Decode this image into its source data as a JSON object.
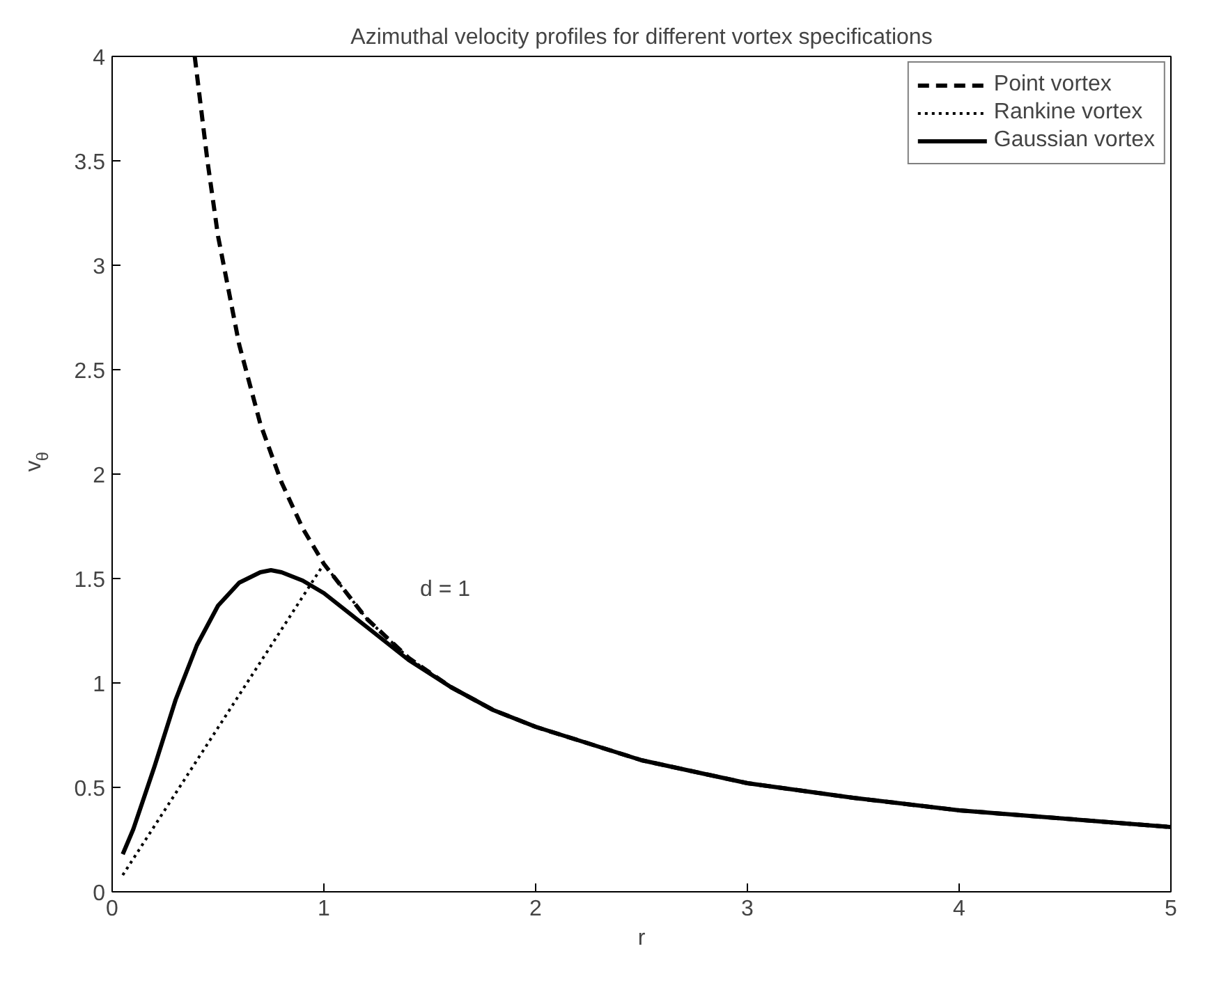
{
  "chart_data": {
    "type": "line",
    "title": "Azimuthal velocity profiles for different vortex specifications",
    "xlabel": "r",
    "ylabel": "v$_{θ}$",
    "xlim": [
      0,
      5
    ],
    "ylim": [
      0,
      4
    ],
    "xticks": [
      0,
      1,
      2,
      3,
      4,
      5
    ],
    "yticks": [
      0,
      0.5,
      1,
      1.5,
      2,
      2.5,
      3,
      3.5,
      4
    ],
    "grid": false,
    "legend": "top right",
    "annotations": [
      "d = 1"
    ],
    "series": [
      {
        "name": "Point vortex",
        "color": "#000000",
        "line_style": "dashed",
        "x": [
          0.39,
          0.45,
          0.5,
          0.6,
          0.7,
          0.8,
          0.9,
          1.0,
          1.2,
          1.4,
          1.6,
          1.8,
          2,
          2.5,
          3,
          3.5,
          4,
          4.5,
          5
        ],
        "values": [
          4.0,
          3.5,
          3.14,
          2.62,
          2.24,
          1.96,
          1.74,
          1.57,
          1.31,
          1.12,
          0.98,
          0.87,
          0.79,
          0.63,
          0.52,
          0.45,
          0.39,
          0.35,
          0.31
        ]
      },
      {
        "name": "Rankine vortex",
        "color": "#000000",
        "line_style": "dotted",
        "x": [
          0.05,
          1.0,
          1.2,
          1.4,
          1.6,
          1.8,
          2,
          2.5,
          3,
          3.5,
          4,
          4.5,
          5
        ],
        "values": [
          0.08,
          1.57,
          1.31,
          1.12,
          0.98,
          0.87,
          0.79,
          0.63,
          0.52,
          0.45,
          0.39,
          0.35,
          0.31
        ]
      },
      {
        "name": "Gaussian vortex",
        "color": "#000000",
        "line_style": "solid",
        "x": [
          0.05,
          0.1,
          0.2,
          0.3,
          0.4,
          0.5,
          0.6,
          0.7,
          0.75,
          0.8,
          0.9,
          1.0,
          1.2,
          1.4,
          1.6,
          1.8,
          2,
          2.5,
          3,
          3.5,
          4,
          4.5,
          5
        ],
        "values": [
          0.18,
          0.3,
          0.6,
          0.92,
          1.18,
          1.37,
          1.48,
          1.53,
          1.54,
          1.53,
          1.49,
          1.43,
          1.27,
          1.11,
          0.98,
          0.87,
          0.79,
          0.63,
          0.52,
          0.45,
          0.39,
          0.35,
          0.31
        ]
      }
    ]
  }
}
